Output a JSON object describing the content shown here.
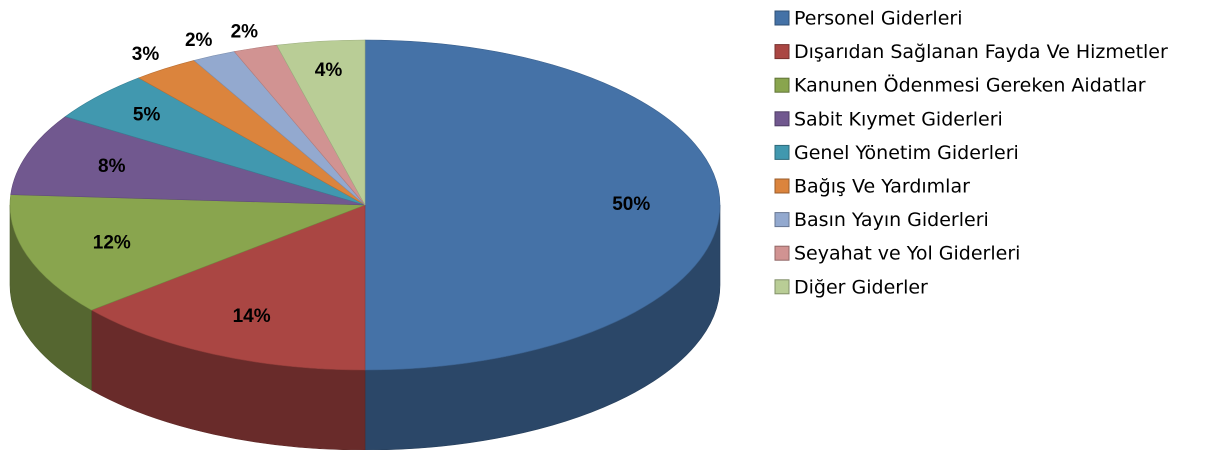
{
  "chart_data": {
    "type": "pie",
    "categories": [
      "Personel Giderleri",
      "Dışarıdan Sağlanan Fayda Ve Hizmetler",
      "Kanunen Ödenmesi Gereken Aidatlar",
      "Sabit Kıymet Giderleri",
      "Genel Yönetim Giderleri",
      "Bağış Ve Yardımlar",
      "Basın Yayın Giderleri",
      "Seyahat ve Yol Giderleri",
      "Diğer Giderler"
    ],
    "values": [
      50,
      14,
      12,
      8,
      5,
      3,
      2,
      2,
      4
    ],
    "value_labels": [
      "50%",
      "14%",
      "12%",
      "8%",
      "5%",
      "3%",
      "2%",
      "2%",
      "4%"
    ],
    "colors": [
      "#4572a7",
      "#aa4643",
      "#89a54e",
      "#71588f",
      "#4198af",
      "#db843d",
      "#93a9cf",
      "#d19392",
      "#b9cd96"
    ],
    "legend": "right"
  }
}
